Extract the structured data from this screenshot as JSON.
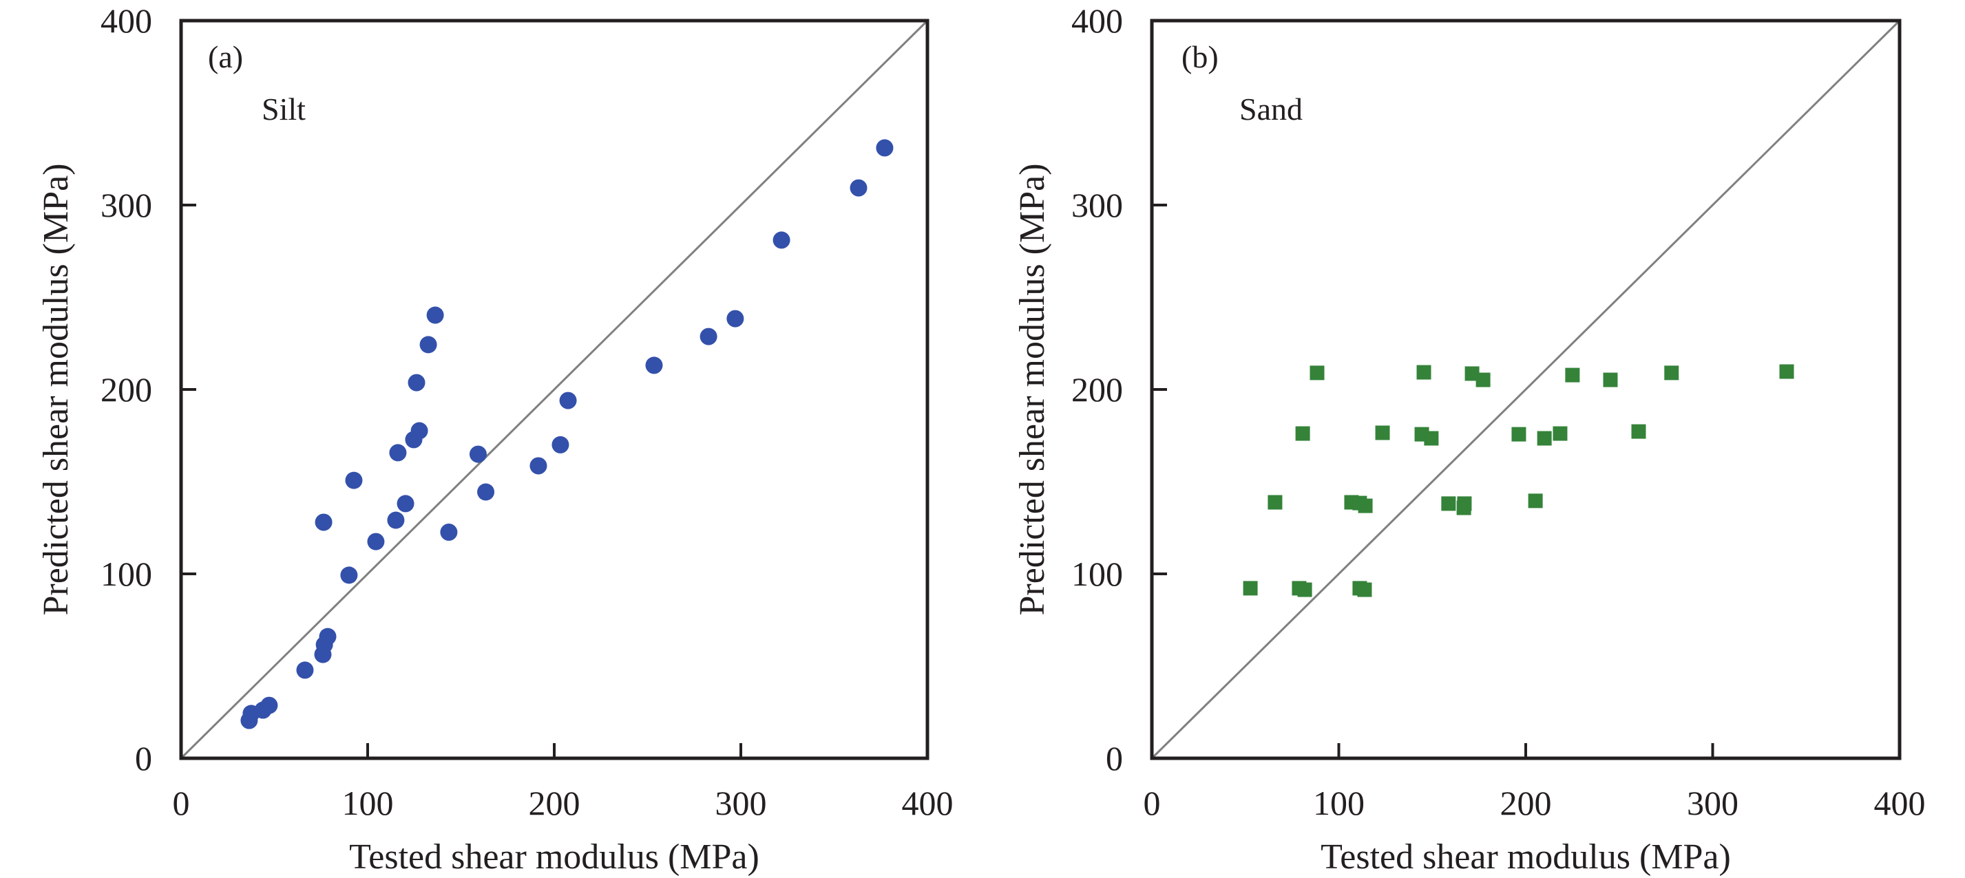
{
  "chart_data": [
    {
      "type": "scatter",
      "panel_label": "(a)",
      "annotation": "Silt",
      "xlabel": "Tested shear modulus (MPa)",
      "ylabel": "Predicted shear modulus (MPa)",
      "xlim": [
        0,
        400
      ],
      "ylim": [
        0,
        400
      ],
      "xticks": [
        "0",
        "100",
        "200",
        "300",
        "400"
      ],
      "yticks": [
        "0",
        "100",
        "200",
        "300",
        "400"
      ],
      "grid": false,
      "reference_line": {
        "name": "1:1 line",
        "from": [
          0,
          0
        ],
        "to": [
          400,
          400
        ],
        "color": "#808080"
      },
      "marker": "circle",
      "color": "#3350ab",
      "series": [
        {
          "name": "Silt",
          "points": [
            [
              36.5,
              20.5
            ],
            [
              37.6,
              24.3
            ],
            [
              43.9,
              26.1
            ],
            [
              47.2,
              28.7
            ],
            [
              66.4,
              47.8
            ],
            [
              76.0,
              56.3
            ],
            [
              76.8,
              61.6
            ],
            [
              78.6,
              66.0
            ],
            [
              90.0,
              99.3
            ],
            [
              76.4,
              128.0
            ],
            [
              92.6,
              150.7
            ],
            [
              104.4,
              117.5
            ],
            [
              115.1,
              129.1
            ],
            [
              116.2,
              165.7
            ],
            [
              120.3,
              138.1
            ],
            [
              124.7,
              172.8
            ],
            [
              127.7,
              177.6
            ],
            [
              126.2,
              203.7
            ],
            [
              132.5,
              224.3
            ],
            [
              136.2,
              240.3
            ],
            [
              143.5,
              122.6
            ],
            [
              159.2,
              164.9
            ],
            [
              163.3,
              144.4
            ],
            [
              191.5,
              158.6
            ],
            [
              203.3,
              170.0
            ],
            [
              207.4,
              194.0
            ],
            [
              253.5,
              213.1
            ],
            [
              282.7,
              228.7
            ],
            [
              297.0,
              238.4
            ],
            [
              321.8,
              281.0
            ],
            [
              363.1,
              309.3
            ],
            [
              377.1,
              331.0
            ]
          ]
        }
      ]
    },
    {
      "type": "scatter",
      "panel_label": "(b)",
      "annotation": "Sand",
      "xlabel": "Tested shear modulus (MPa)",
      "ylabel": "Predicted shear modulus (MPa)",
      "xlim": [
        0,
        400
      ],
      "ylim": [
        0,
        400
      ],
      "xticks": [
        "0",
        "100",
        "200",
        "300",
        "400"
      ],
      "yticks": [
        "0",
        "100",
        "200",
        "300",
        "400"
      ],
      "grid": false,
      "reference_line": {
        "name": "1:1 line",
        "from": [
          0,
          0
        ],
        "to": [
          400,
          400
        ],
        "color": "#808080"
      },
      "marker": "square",
      "color": "#348339",
      "series": [
        {
          "name": "Sand",
          "points": [
            [
              52.7,
              92.2
            ],
            [
              78.8,
              92.2
            ],
            [
              81.8,
              91.4
            ],
            [
              111.2,
              92.2
            ],
            [
              113.8,
              91.4
            ],
            [
              65.9,
              138.8
            ],
            [
              106.8,
              138.8
            ],
            [
              111.2,
              138.4
            ],
            [
              114.2,
              136.9
            ],
            [
              158.7,
              138.1
            ],
            [
              166.9,
              135.8
            ],
            [
              167.2,
              138.1
            ],
            [
              205.2,
              139.6
            ],
            [
              80.7,
              176.1
            ],
            [
              123.4,
              176.5
            ],
            [
              144.4,
              175.7
            ],
            [
              149.5,
              173.5
            ],
            [
              196.3,
              175.7
            ],
            [
              210.0,
              173.5
            ],
            [
              218.4,
              176.1
            ],
            [
              260.4,
              177.2
            ],
            [
              88.4,
              209.0
            ],
            [
              145.5,
              209.3
            ],
            [
              171.3,
              208.6
            ],
            [
              177.2,
              205.2
            ],
            [
              225.0,
              207.8
            ],
            [
              245.3,
              205.2
            ],
            [
              278.0,
              209.0
            ],
            [
              339.6,
              209.7
            ]
          ]
        }
      ]
    }
  ]
}
